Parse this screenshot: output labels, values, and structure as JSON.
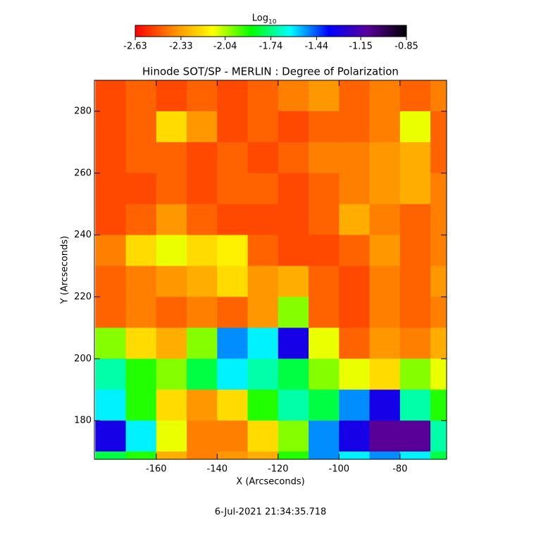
{
  "chart_data": {
    "type": "heatmap",
    "title": "Hinode SOT/SP - MERLIN : Degree of Polarization",
    "xlabel": "X (Arcseconds)",
    "ylabel": "Y (Arcseconds)",
    "colorbar_label": "Log",
    "colorbar_label_sub": "10",
    "footer": "6-Jul-2021 21:34:35.718",
    "xlim": [
      -180.3,
      -64.7
    ],
    "ylim": [
      167.5,
      290
    ],
    "xticks": [
      -160,
      -140,
      -120,
      -100,
      -80
    ],
    "yticks": [
      180,
      200,
      220,
      240,
      260,
      280
    ],
    "clim": [
      -2.63,
      -0.85
    ],
    "cticks": [
      -2.63,
      -2.33,
      -2.04,
      -1.74,
      -1.44,
      -1.15,
      -0.85
    ],
    "colormap": [
      "#ff0000",
      "#ff8c00",
      "#ffff00",
      "#00ff00",
      "#00ffff",
      "#0000ff",
      "#5a009a",
      "#000000"
    ],
    "x": [
      -175,
      -165,
      -155,
      -145,
      -135,
      -125,
      -115,
      -105,
      -95,
      -85,
      -75,
      -65
    ],
    "y": [
      285,
      275,
      265,
      255,
      245,
      235,
      225,
      215,
      205,
      195,
      185,
      175,
      165
    ],
    "values": [
      [
        -2.5,
        -2.45,
        -2.5,
        -2.45,
        -2.5,
        -2.45,
        -2.4,
        -2.35,
        -2.45,
        -2.4,
        -2.45,
        -2.4
      ],
      [
        -2.5,
        -2.45,
        -2.2,
        -2.35,
        -2.5,
        -2.45,
        -2.5,
        -2.45,
        -2.45,
        -2.4,
        -2.1,
        -2.45
      ],
      [
        -2.5,
        -2.45,
        -2.45,
        -2.5,
        -2.45,
        -2.5,
        -2.45,
        -2.4,
        -2.4,
        -2.35,
        -2.3,
        -2.45
      ],
      [
        -2.5,
        -2.5,
        -2.45,
        -2.5,
        -2.45,
        -2.45,
        -2.5,
        -2.45,
        -2.4,
        -2.35,
        -2.3,
        -2.4
      ],
      [
        -2.5,
        -2.45,
        -2.35,
        -2.45,
        -2.5,
        -2.5,
        -2.5,
        -2.45,
        -2.3,
        -2.4,
        -2.45,
        -2.4
      ],
      [
        -2.4,
        -2.2,
        -2.1,
        -2.2,
        -2.15,
        -2.45,
        -2.5,
        -2.5,
        -2.45,
        -2.35,
        -2.45,
        -2.4
      ],
      [
        -2.45,
        -2.4,
        -2.35,
        -2.3,
        -2.2,
        -2.35,
        -2.3,
        -2.45,
        -2.5,
        -2.4,
        -2.45,
        -2.35
      ],
      [
        -2.45,
        -2.4,
        -2.45,
        -2.4,
        -2.45,
        -2.35,
        -2.0,
        -2.45,
        -2.5,
        -2.4,
        -2.45,
        -2.4
      ],
      [
        -2.0,
        -2.2,
        -2.3,
        -2.0,
        -1.5,
        -1.6,
        -1.3,
        -2.1,
        -2.45,
        -2.35,
        -2.4,
        -2.3
      ],
      [
        -1.7,
        -1.9,
        -2.0,
        -1.8,
        -1.6,
        -1.7,
        -1.8,
        -2.0,
        -2.1,
        -2.2,
        -2.0,
        -2.1
      ],
      [
        -1.6,
        -1.9,
        -2.2,
        -2.35,
        -2.2,
        -1.9,
        -1.7,
        -1.8,
        -1.5,
        -1.3,
        -1.7,
        -1.9
      ],
      [
        -1.3,
        -1.6,
        -2.1,
        -2.4,
        -2.4,
        -2.2,
        -2.0,
        -1.5,
        -1.3,
        -1.1,
        -1.1,
        -1.7
      ],
      [
        -1.8,
        -1.9,
        -2.3,
        -2.4,
        -2.35,
        -2.3,
        -1.9,
        -1.5,
        -1.6,
        -1.5,
        -1.6,
        -1.8
      ]
    ]
  }
}
